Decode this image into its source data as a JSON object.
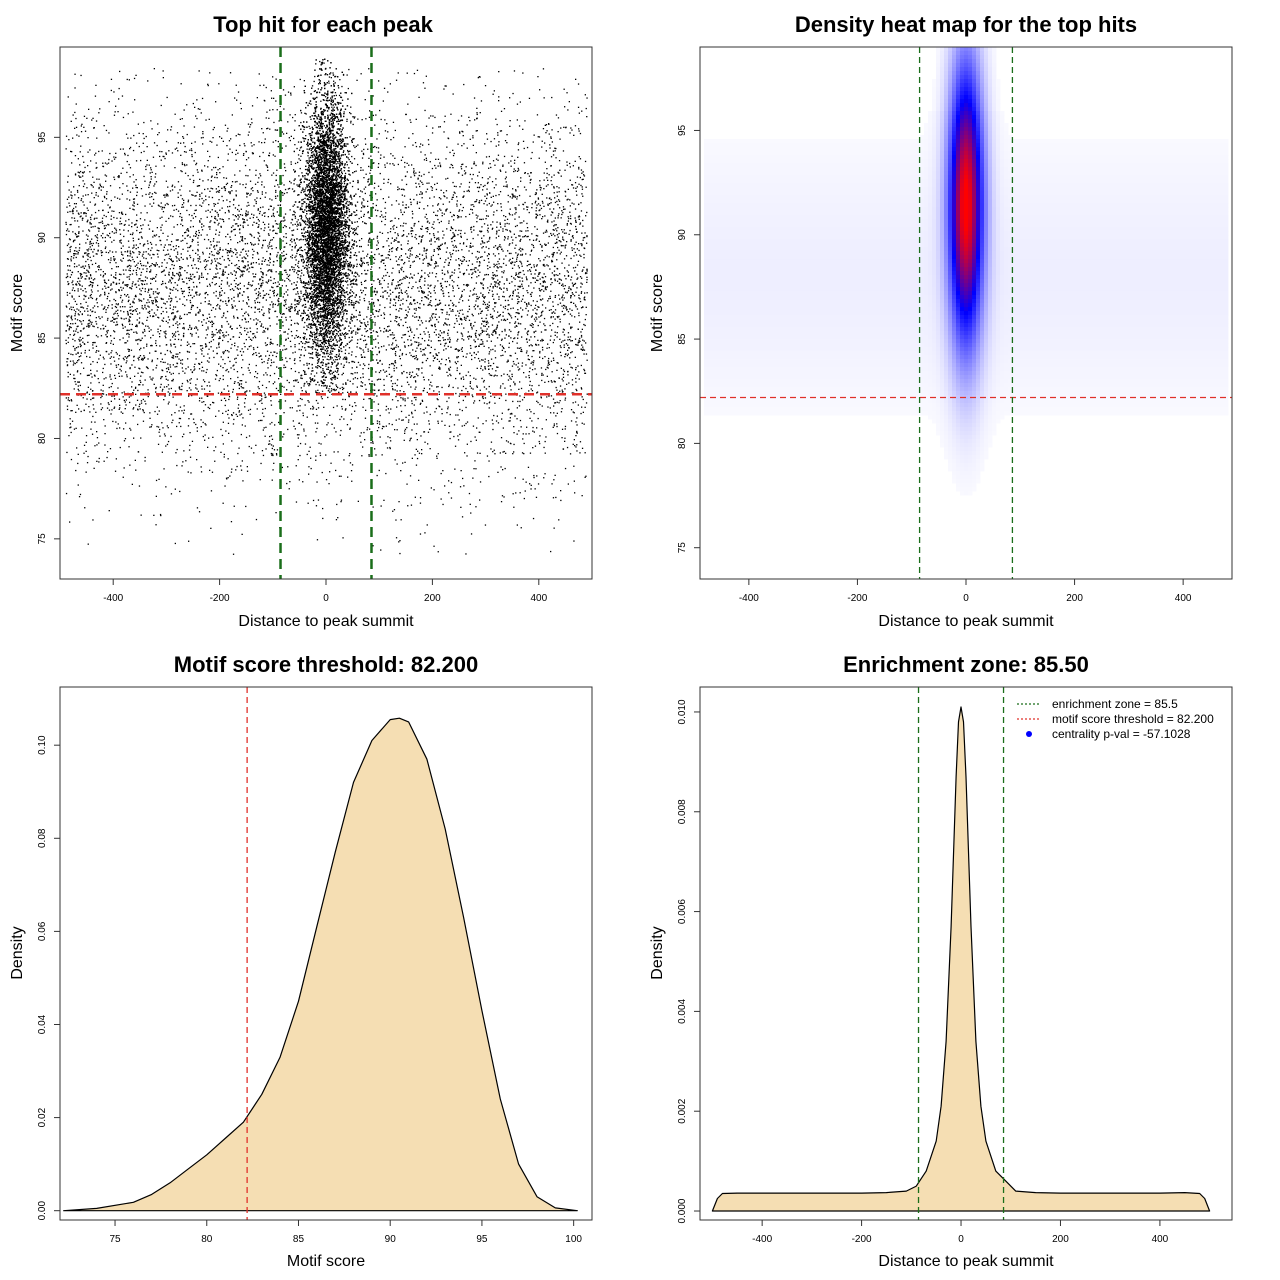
{
  "colors": {
    "threshold_line": "#e0302a",
    "zone_line": "#1a6e1a",
    "density_fill": "#f5deb3",
    "heat_low": "#ffffff",
    "heat_mid": "#0000ff",
    "heat_high": "#ff0000",
    "legend_point": "#0000ff"
  },
  "chart_data": [
    {
      "type": "scatter",
      "title": "Top hit for each peak",
      "xlabel": "Distance to peak summit",
      "ylabel": "Motif score",
      "xlim": [
        -500,
        500
      ],
      "ylim": [
        73,
        99.5
      ],
      "xticks": [
        "-400",
        "-200",
        "0",
        "200",
        "400"
      ],
      "yticks": [
        "75",
        "80",
        "85",
        "90",
        "95"
      ],
      "threshold_y": 82.2,
      "zone_x": [
        -85.5,
        85.5
      ],
      "distribution": {
        "background": {
          "x_range": [
            -490,
            490
          ],
          "y_center": 87.5,
          "y_sd": 4.5
        },
        "central": {
          "x_center": 0,
          "x_sd": 20,
          "y_center": 90.5,
          "y_sd": 3.2
        }
      }
    },
    {
      "type": "heatmap",
      "title": "Density heat map for the top hits",
      "xlabel": "Distance to peak summit",
      "ylabel": "Motif score",
      "xlim": [
        -490,
        490
      ],
      "ylim": [
        73.5,
        99
      ],
      "xticks": [
        "-400",
        "-200",
        "0",
        "200",
        "400"
      ],
      "yticks": [
        "75",
        "80",
        "85",
        "90",
        "95"
      ],
      "threshold_y": 82.2,
      "zone_x": [
        -85.5,
        85.5
      ],
      "peak": {
        "x": 0,
        "y": 91.5
      }
    },
    {
      "type": "area",
      "title": "Motif score threshold: 82.200",
      "xlabel": "Motif score",
      "ylabel": "Density",
      "xlim": [
        72,
        101
      ],
      "ylim": [
        -0.002,
        0.1125
      ],
      "xticks": [
        "75",
        "80",
        "85",
        "90",
        "95",
        "100"
      ],
      "yticks": [
        "0.00",
        "0.02",
        "0.04",
        "0.06",
        "0.08",
        "0.10"
      ],
      "threshold_x": 82.2,
      "x": [
        72.2,
        74,
        76,
        77,
        78,
        79,
        80,
        81,
        82,
        83,
        84,
        85,
        86,
        87,
        88,
        89,
        90,
        90.5,
        91,
        92,
        93,
        94,
        95,
        96,
        97,
        98,
        99,
        100.2
      ],
      "y": [
        0.0,
        0.0005,
        0.0018,
        0.0035,
        0.006,
        0.009,
        0.012,
        0.0155,
        0.019,
        0.025,
        0.033,
        0.045,
        0.061,
        0.077,
        0.092,
        0.101,
        0.1055,
        0.1058,
        0.105,
        0.097,
        0.082,
        0.063,
        0.043,
        0.024,
        0.01,
        0.003,
        0.0006,
        0.0
      ]
    },
    {
      "type": "area",
      "title": "Enrichment zone: 85.50",
      "xlabel": "Distance to peak summit",
      "ylabel": "Density",
      "xlim": [
        -525,
        545
      ],
      "ylim": [
        -0.00018,
        0.0105
      ],
      "xticks": [
        "-400",
        "-200",
        "0",
        "200",
        "400"
      ],
      "yticks": [
        "0.000",
        "0.002",
        "0.004",
        "0.006",
        "0.008",
        "0.010"
      ],
      "zone_x": [
        -85.5,
        85.5
      ],
      "x": [
        -500,
        -490,
        -480,
        -450,
        -400,
        -350,
        -300,
        -250,
        -200,
        -150,
        -110,
        -90,
        -70,
        -50,
        -40,
        -30,
        -20,
        -10,
        -5,
        0,
        5,
        10,
        20,
        30,
        40,
        50,
        70,
        90,
        110,
        150,
        200,
        250,
        300,
        350,
        400,
        450,
        480,
        490,
        500
      ],
      "y": [
        0.0,
        0.00025,
        0.00035,
        0.00036,
        0.00036,
        0.00036,
        0.00036,
        0.00036,
        0.00036,
        0.00037,
        0.0004,
        0.0005,
        0.0008,
        0.0014,
        0.0021,
        0.0034,
        0.0057,
        0.0087,
        0.0098,
        0.0101,
        0.0098,
        0.0087,
        0.0057,
        0.0034,
        0.0021,
        0.0014,
        0.0008,
        0.0006,
        0.0004,
        0.00037,
        0.00036,
        0.00036,
        0.00036,
        0.00036,
        0.00036,
        0.00037,
        0.00035,
        0.00025,
        0.0
      ],
      "legend": {
        "position": "top-right",
        "entries": [
          {
            "label": "enrichment zone = 85.5",
            "symbol": "dotted-line",
            "color": "#1a6e1a"
          },
          {
            "label": "motif score threshold = 82.200",
            "symbol": "dotted-line",
            "color": "#e0302a"
          },
          {
            "label": "centrality p-val = -57.1028",
            "symbol": "point",
            "color": "#0000ff"
          }
        ]
      }
    }
  ]
}
